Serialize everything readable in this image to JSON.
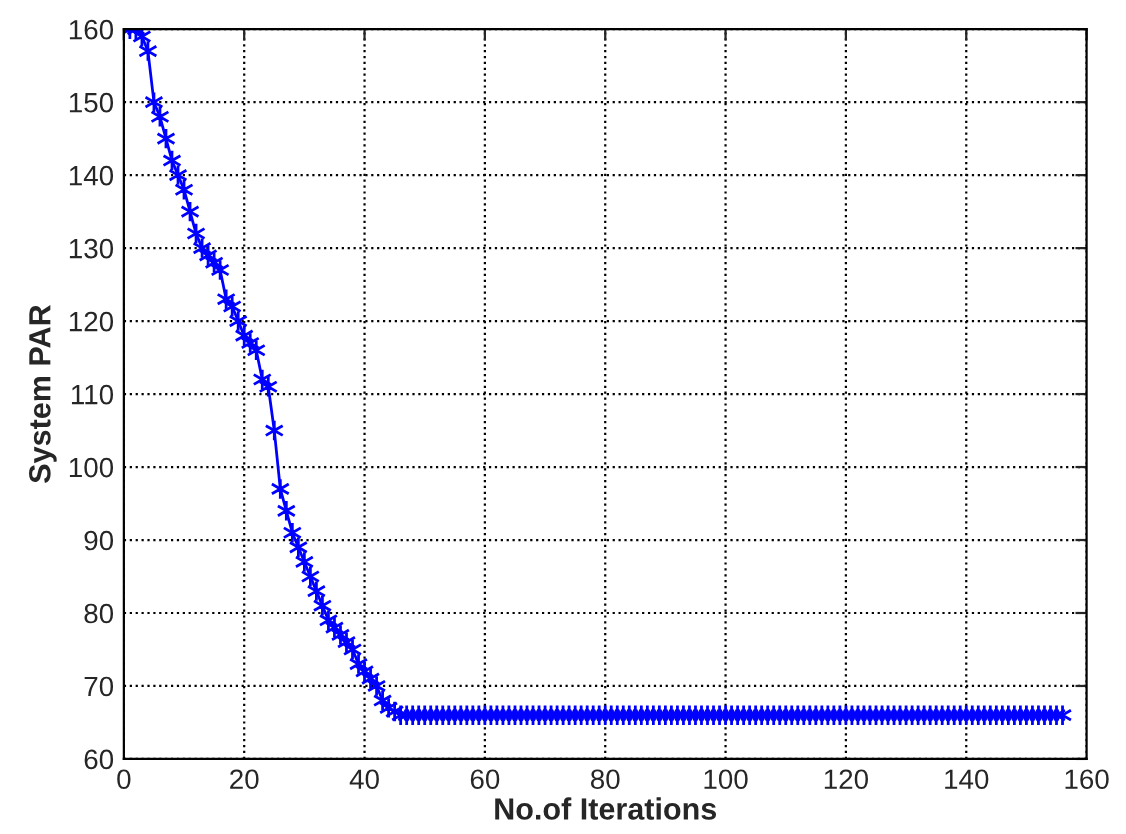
{
  "chart_data": {
    "type": "line",
    "xlabel": "No.of Iterations",
    "ylabel": "System PAR",
    "x": [
      1,
      2,
      3,
      4,
      5,
      6,
      7,
      8,
      9,
      10,
      11,
      12,
      13,
      14,
      15,
      16,
      17,
      18,
      19,
      20,
      21,
      22,
      23,
      24,
      25,
      26,
      27,
      28,
      29,
      30,
      31,
      32,
      33,
      34,
      35,
      36,
      37,
      38,
      39,
      40,
      41,
      42,
      43,
      44,
      45,
      46,
      47,
      48,
      49,
      50,
      51,
      52,
      53,
      54,
      55,
      56,
      57,
      58,
      59,
      60,
      61,
      62,
      63,
      64,
      65,
      66,
      67,
      68,
      69,
      70,
      71,
      72,
      73,
      74,
      75,
      76,
      77,
      78,
      79,
      80,
      81,
      82,
      83,
      84,
      85,
      86,
      87,
      88,
      89,
      90,
      91,
      92,
      93,
      94,
      95,
      96,
      97,
      98,
      99,
      100,
      101,
      102,
      103,
      104,
      105,
      106,
      107,
      108,
      109,
      110,
      111,
      112,
      113,
      114,
      115,
      116,
      117,
      118,
      119,
      120,
      121,
      122,
      123,
      124,
      125,
      126,
      127,
      128,
      129,
      130,
      131,
      132,
      133,
      134,
      135,
      136,
      137,
      138,
      139,
      140,
      141,
      142,
      143,
      144,
      145,
      146,
      147,
      148,
      149,
      150,
      151,
      152,
      153,
      154,
      155,
      156
    ],
    "series": [
      {
        "color": "#0000ff",
        "values": [
          160,
          160,
          159,
          157,
          150,
          148,
          145,
          142,
          140,
          138,
          135,
          132,
          130,
          129,
          128,
          127,
          123,
          122,
          120,
          118,
          117,
          116,
          112,
          111,
          105,
          97,
          94,
          91,
          89,
          87,
          85,
          83,
          81,
          79,
          78,
          77,
          76,
          75,
          73,
          72,
          71,
          70,
          68,
          67,
          66.5,
          66,
          66,
          66,
          66,
          66,
          66,
          66,
          66,
          66,
          66,
          66,
          66,
          66,
          66,
          66,
          66,
          66,
          66,
          66,
          66,
          66,
          66,
          66,
          66,
          66,
          66,
          66,
          66,
          66,
          66,
          66,
          66,
          66,
          66,
          66,
          66,
          66,
          66,
          66,
          66,
          66,
          66,
          66,
          66,
          66,
          66,
          66,
          66,
          66,
          66,
          66,
          66,
          66,
          66,
          66,
          66,
          66,
          66,
          66,
          66,
          66,
          66,
          66,
          66,
          66,
          66,
          66,
          66,
          66,
          66,
          66,
          66,
          66,
          66,
          66,
          66,
          66,
          66,
          66,
          66,
          66,
          66,
          66,
          66,
          66,
          66,
          66,
          66,
          66,
          66,
          66,
          66,
          66,
          66,
          66,
          66,
          66,
          66,
          66,
          66,
          66,
          66,
          66,
          66,
          66,
          66,
          66,
          66,
          66,
          66,
          66
        ]
      }
    ],
    "xlim": [
      0,
      160
    ],
    "ylim": [
      60,
      160
    ],
    "xticks": [
      0,
      20,
      40,
      60,
      80,
      100,
      120,
      140,
      160
    ],
    "yticks": [
      60,
      70,
      80,
      90,
      100,
      110,
      120,
      130,
      140,
      150,
      160
    ],
    "grid": true,
    "marker": "cross",
    "line_style": "solid"
  }
}
